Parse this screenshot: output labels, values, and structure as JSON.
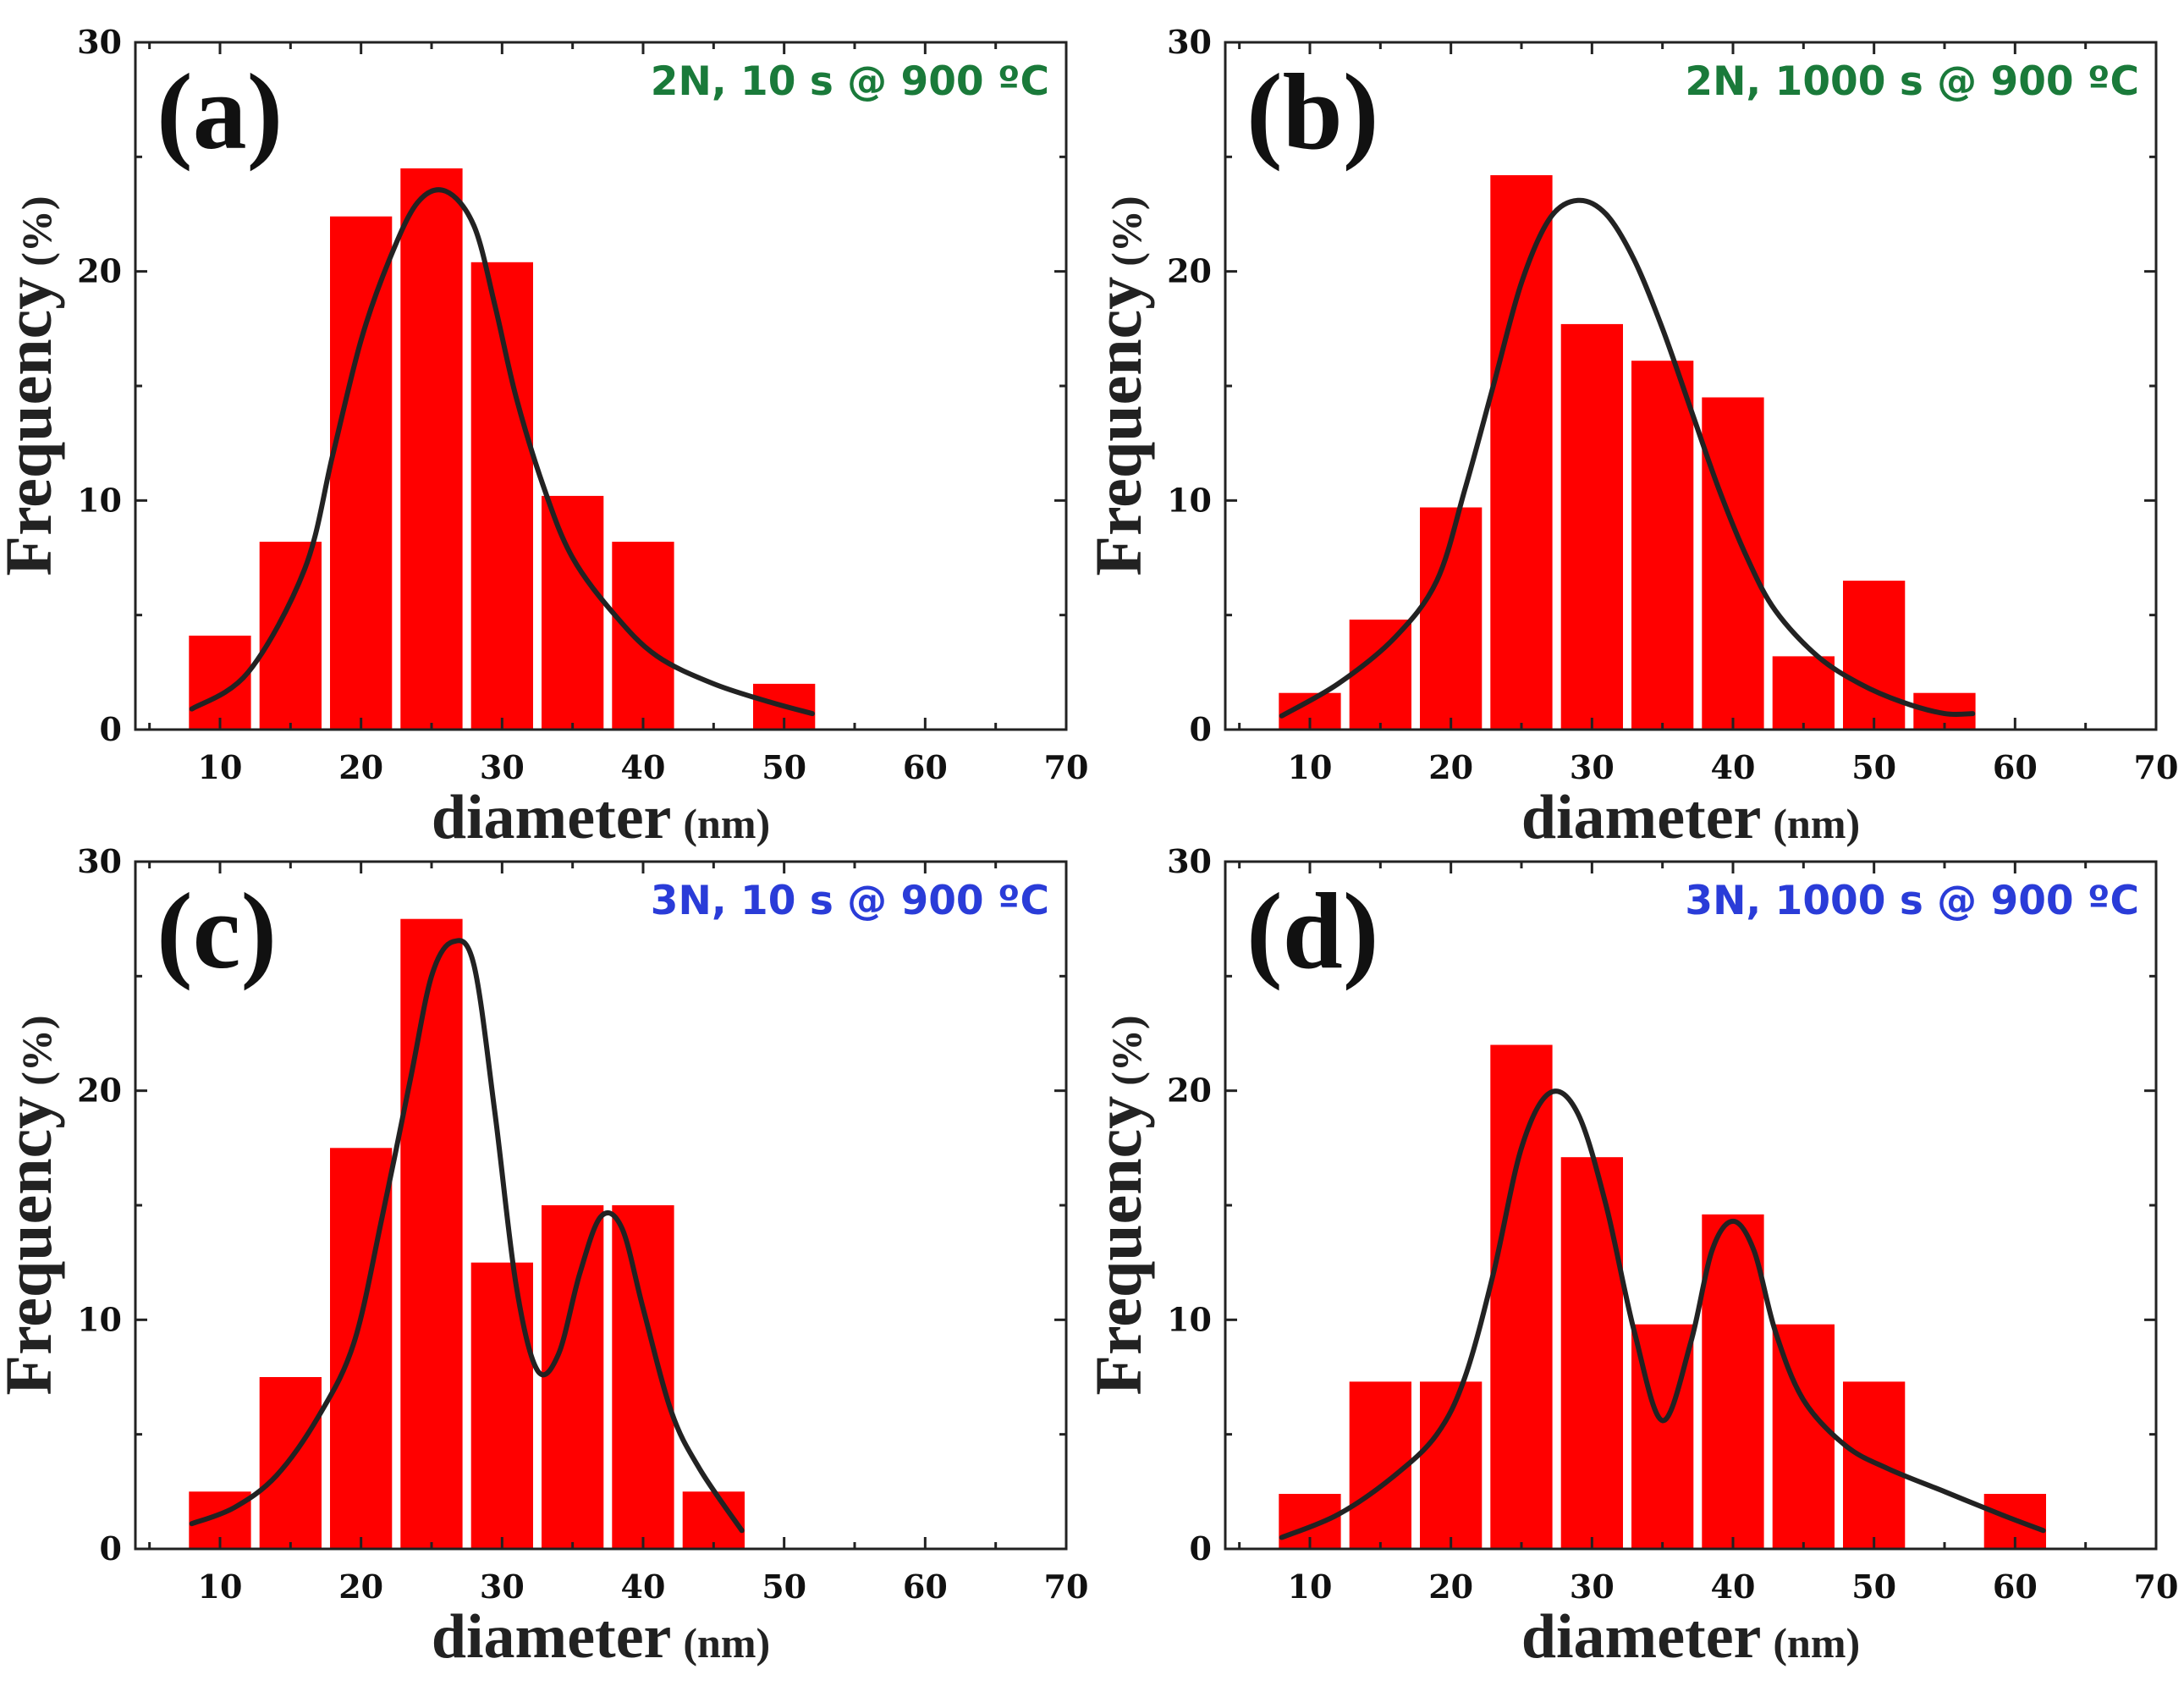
{
  "colors": {
    "bar": "#ff0000",
    "curve": "#222222",
    "green": "#1a7a3a",
    "blue": "#2a3cd8"
  },
  "chart_data": [
    {
      "type": "bar",
      "panel": "(a)",
      "condition": "2N, 10 s @ 900 ºC",
      "condition_color": "green",
      "xlabel": "diameter",
      "xunit": "(nm)",
      "ylabel": "Frequency",
      "yunit": "(%)",
      "xlim": [
        4,
        70
      ],
      "ylim": [
        0,
        30
      ],
      "xticks": [
        10,
        20,
        30,
        40,
        50,
        60,
        70
      ],
      "yticks": [
        0,
        10,
        20,
        30
      ],
      "bin_width": 5,
      "bins": [
        10,
        15,
        20,
        25,
        30,
        35,
        40,
        50
      ],
      "values": [
        4.1,
        8.2,
        22.4,
        24.5,
        20.4,
        10.2,
        8.2,
        2.0
      ],
      "fit_curve": [
        [
          8,
          0.9
        ],
        [
          12,
          2.5
        ],
        [
          16,
          7
        ],
        [
          18,
          12
        ],
        [
          20,
          17
        ],
        [
          22,
          20.5
        ],
        [
          24,
          23
        ],
        [
          26,
          23.5
        ],
        [
          28,
          22
        ],
        [
          29.5,
          18.5
        ],
        [
          31,
          14.5
        ],
        [
          33,
          10.5
        ],
        [
          35,
          7.5
        ],
        [
          38,
          5
        ],
        [
          41,
          3.2
        ],
        [
          45,
          2
        ],
        [
          49,
          1.2
        ],
        [
          52,
          0.7
        ]
      ]
    },
    {
      "type": "bar",
      "panel": "(b)",
      "condition": "2N, 1000 s @ 900 ºC",
      "condition_color": "green",
      "xlabel": "diameter",
      "xunit": "(nm)",
      "ylabel": "Frequency",
      "yunit": "(%)",
      "xlim": [
        4,
        70
      ],
      "ylim": [
        0,
        30
      ],
      "xticks": [
        10,
        20,
        30,
        40,
        50,
        60,
        70
      ],
      "yticks": [
        0,
        10,
        20,
        30
      ],
      "bin_width": 5,
      "bins": [
        10,
        15,
        20,
        25,
        30,
        35,
        40,
        45,
        50,
        55
      ],
      "values": [
        1.6,
        4.8,
        9.7,
        24.2,
        17.7,
        16.1,
        14.5,
        3.2,
        6.5,
        1.6
      ],
      "fit_curve": [
        [
          8,
          0.6
        ],
        [
          12,
          2
        ],
        [
          16,
          4
        ],
        [
          19,
          6.5
        ],
        [
          21,
          10.5
        ],
        [
          23,
          15
        ],
        [
          25,
          19.5
        ],
        [
          27,
          22.3
        ],
        [
          29,
          23.1
        ],
        [
          31,
          22.5
        ],
        [
          33,
          20.5
        ],
        [
          35,
          17.5
        ],
        [
          37,
          14
        ],
        [
          39,
          10.5
        ],
        [
          41,
          7.5
        ],
        [
          43,
          5.2
        ],
        [
          46,
          3.2
        ],
        [
          49,
          2
        ],
        [
          52,
          1.2
        ],
        [
          55,
          0.7
        ],
        [
          57,
          0.7
        ]
      ]
    },
    {
      "type": "bar",
      "panel": "(c)",
      "condition": "3N, 10 s @ 900 ºC",
      "condition_color": "blue",
      "xlabel": "diameter",
      "xunit": "(nm)",
      "ylabel": "Frequency",
      "yunit": "(%)",
      "xlim": [
        4,
        70
      ],
      "ylim": [
        0,
        30
      ],
      "xticks": [
        10,
        20,
        30,
        40,
        50,
        60,
        70
      ],
      "yticks": [
        0,
        10,
        20,
        30
      ],
      "bin_width": 5,
      "bins": [
        10,
        15,
        20,
        25,
        30,
        35,
        40,
        45
      ],
      "values": [
        2.5,
        7.5,
        17.5,
        27.5,
        12.5,
        15.0,
        15.0,
        2.5
      ],
      "fit_curve": [
        [
          8,
          1.1
        ],
        [
          11,
          1.8
        ],
        [
          14,
          3.2
        ],
        [
          17,
          5.8
        ],
        [
          19.5,
          9
        ],
        [
          21.5,
          14.5
        ],
        [
          23.5,
          20.5
        ],
        [
          25,
          25
        ],
        [
          26.5,
          26.5
        ],
        [
          28,
          25.5
        ],
        [
          29.5,
          19
        ],
        [
          31,
          11.5
        ],
        [
          32.5,
          7.8
        ],
        [
          34,
          8.5
        ],
        [
          35.5,
          12
        ],
        [
          37,
          14.5
        ],
        [
          38.5,
          14
        ],
        [
          40,
          10.5
        ],
        [
          42,
          6
        ],
        [
          44,
          3.5
        ],
        [
          47,
          0.8
        ]
      ]
    },
    {
      "type": "bar",
      "panel": "(d)",
      "condition": "3N, 1000 s @ 900 ºC",
      "condition_color": "blue",
      "xlabel": "diameter",
      "xunit": "(nm)",
      "ylabel": "Frequency",
      "yunit": "(%)",
      "xlim": [
        4,
        70
      ],
      "ylim": [
        0,
        30
      ],
      "xticks": [
        10,
        20,
        30,
        40,
        50,
        60,
        70
      ],
      "yticks": [
        0,
        10,
        20,
        30
      ],
      "bin_width": 5,
      "bins": [
        10,
        15,
        20,
        25,
        30,
        35,
        40,
        45,
        50,
        60
      ],
      "values": [
        2.4,
        7.3,
        7.3,
        22.0,
        17.1,
        9.8,
        14.6,
        9.8,
        7.3,
        2.4
      ],
      "fit_curve": [
        [
          8,
          0.5
        ],
        [
          12,
          1.5
        ],
        [
          16,
          3.2
        ],
        [
          19,
          5
        ],
        [
          21,
          7.5
        ],
        [
          23,
          12
        ],
        [
          25,
          17.5
        ],
        [
          27,
          19.9
        ],
        [
          29,
          19
        ],
        [
          31,
          15
        ],
        [
          33,
          9.5
        ],
        [
          35,
          5.6
        ],
        [
          37,
          9
        ],
        [
          38.5,
          13
        ],
        [
          40,
          14.3
        ],
        [
          41.5,
          13
        ],
        [
          43,
          9.5
        ],
        [
          45,
          6.5
        ],
        [
          48,
          4.5
        ],
        [
          51,
          3.5
        ],
        [
          55,
          2.5
        ],
        [
          59,
          1.5
        ],
        [
          62,
          0.8
        ]
      ]
    }
  ]
}
